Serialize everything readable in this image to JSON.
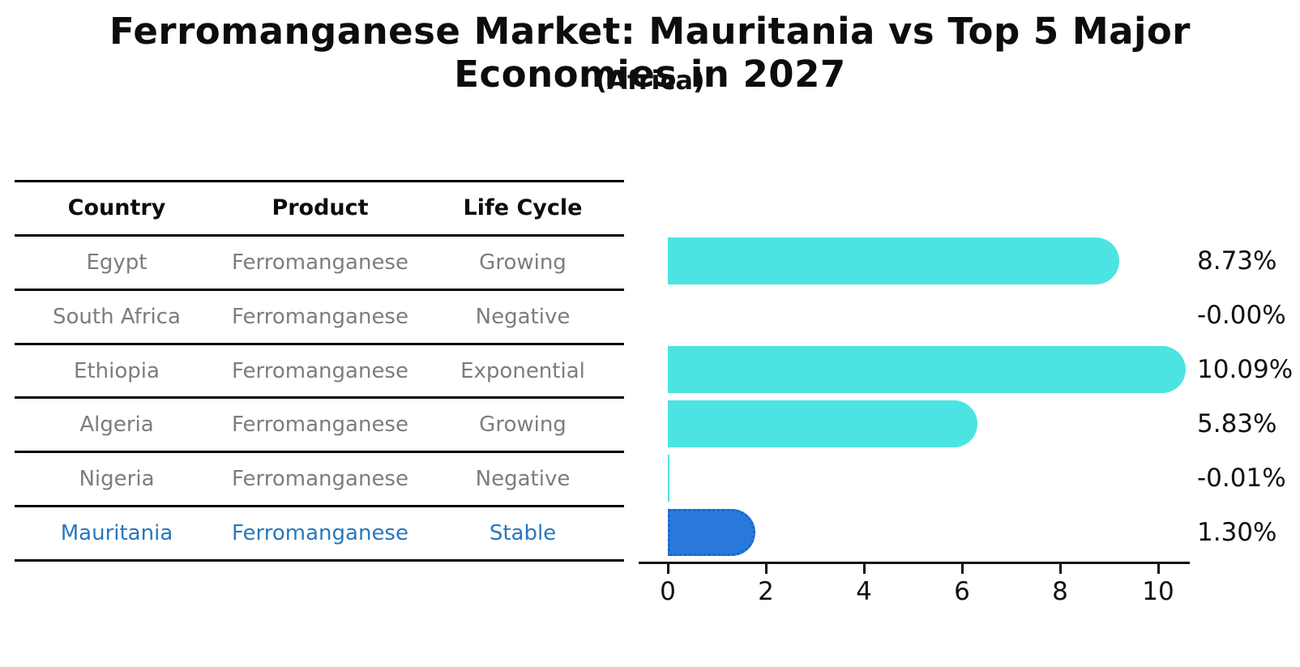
{
  "title": "Ferromanganese Market: Mauritania vs Top 5 Major Economies in 2027",
  "subtitle": "(Africa)",
  "table": {
    "headers": [
      "Country",
      "Product",
      "Life Cycle"
    ],
    "rows": [
      {
        "country": "Egypt",
        "product": "Ferromanganese",
        "life_cycle": "Growing",
        "highlight": false
      },
      {
        "country": "South Africa",
        "product": "Ferromanganese",
        "life_cycle": "Negative",
        "highlight": false
      },
      {
        "country": "Ethiopia",
        "product": "Ferromanganese",
        "life_cycle": "Exponential",
        "highlight": false
      },
      {
        "country": "Algeria",
        "product": "Ferromanganese",
        "life_cycle": "Growing",
        "highlight": false
      },
      {
        "country": "Nigeria",
        "product": "Ferromanganese",
        "life_cycle": "Negative",
        "highlight": false
      },
      {
        "country": "Mauritania",
        "product": "Ferromanganese",
        "life_cycle": "Stable",
        "highlight": true
      }
    ]
  },
  "chart_data": {
    "type": "bar",
    "orientation": "horizontal",
    "title": "Ferromanganese Market: Mauritania vs Top 5 Major Economies in 2027",
    "subtitle": "(Africa)",
    "categories": [
      "Egypt",
      "South Africa",
      "Ethiopia",
      "Algeria",
      "Nigeria",
      "Mauritania"
    ],
    "values": [
      8.73,
      -0.0,
      10.09,
      5.83,
      -0.01,
      1.3
    ],
    "value_labels": [
      "8.73%",
      "-0.00%",
      "10.09%",
      "5.83%",
      "-0.01%",
      "1.30%"
    ],
    "x_ticks": [
      0,
      2,
      4,
      6,
      8,
      10
    ],
    "xlim": [
      0,
      10.65
    ],
    "xlabel": "",
    "ylabel": "",
    "grid": false,
    "legend": false,
    "bar_color": "#4be4e2",
    "highlight_index": 5,
    "highlight_bar_color": "#2979db",
    "highlight_border_color": "#1a66d0",
    "highlight_text_color": "#2878be",
    "table_text_color": "#7d7d7d",
    "axis_color": "#111111"
  }
}
